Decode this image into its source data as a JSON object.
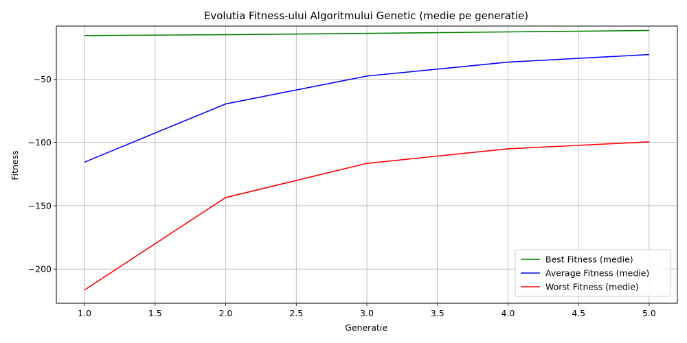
{
  "chart_data": {
    "type": "line",
    "title": "Evolutia Fitness-ului Algoritmului Genetic (medie pe generatie)",
    "xlabel": "Generatie",
    "ylabel": "Fitness",
    "xlim": [
      0.8,
      5.2
    ],
    "ylim": [
      -227,
      -8
    ],
    "x_ticks": [
      1.0,
      1.5,
      2.0,
      2.5,
      3.0,
      3.5,
      4.0,
      4.5,
      5.0
    ],
    "x_tick_labels": [
      "1.0",
      "1.5",
      "2.0",
      "2.5",
      "3.0",
      "3.5",
      "4.0",
      "4.5",
      "5.0"
    ],
    "y_ticks": [
      -200,
      -150,
      -100,
      -50
    ],
    "y_tick_labels": [
      "−200",
      "−150",
      "−100",
      "−50"
    ],
    "grid": true,
    "legend_position": "lower-right",
    "x": [
      1,
      2,
      3,
      4,
      5
    ],
    "series": [
      {
        "name": "Best Fitness (medie)",
        "color": "#008000",
        "values": [
          -15.5,
          -14.8,
          -13.8,
          -12.6,
          -11.5
        ]
      },
      {
        "name": "Average Fitness (medie)",
        "color": "#0000ff",
        "values": [
          -115.5,
          -69.5,
          -47.5,
          -36.5,
          -30.5
        ]
      },
      {
        "name": "Worst Fitness (medie)",
        "color": "#ff0000",
        "values": [
          -216.5,
          -143.5,
          -116.5,
          -105,
          -99.5
        ]
      }
    ]
  }
}
